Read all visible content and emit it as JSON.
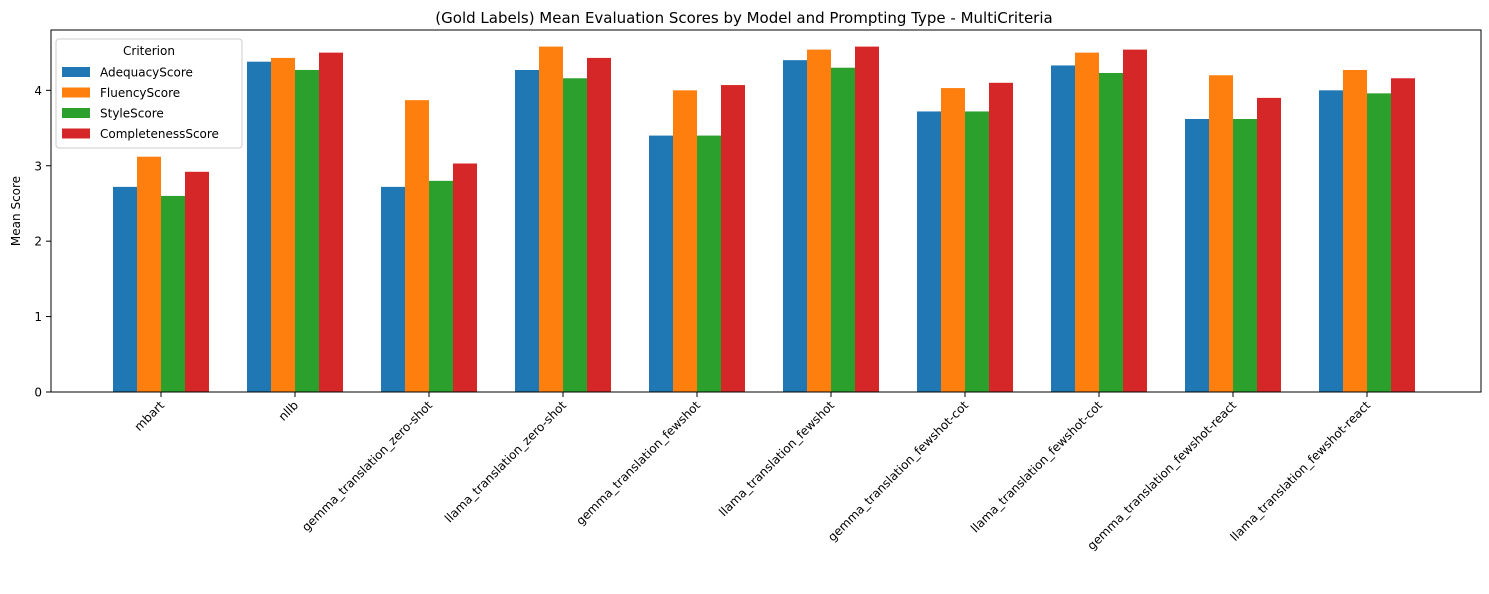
{
  "chart_data": {
    "type": "bar",
    "title": "(Gold Labels) Mean Evaluation Scores by Model and Prompting Type - MultiCriteria",
    "xlabel": "",
    "ylabel": "Mean Score",
    "ylim": [
      0,
      4.8
    ],
    "yticks": [
      0,
      1,
      2,
      3,
      4
    ],
    "grid": false,
    "legend": {
      "title": "Criterion",
      "placement": "top-left"
    },
    "categories": [
      "mbart",
      "nllb",
      "gemma_translation_zero-shot",
      "llama_translation_zero-shot",
      "gemma_translation_fewshot",
      "llama_translation_fewshot",
      "gemma_translation_fewshot-cot",
      "llama_translation_fewshot-cot",
      "gemma_translation_fewshot-react",
      "llama_translation_fewshot-react"
    ],
    "series": [
      {
        "name": "AdequacyScore",
        "color": "#1f77b4",
        "values": [
          2.72,
          4.38,
          2.72,
          4.27,
          3.4,
          4.4,
          3.72,
          4.33,
          3.62,
          4.0
        ]
      },
      {
        "name": "FluencyScore",
        "color": "#ff7f0e",
        "values": [
          3.12,
          4.43,
          3.87,
          4.58,
          4.0,
          4.54,
          4.03,
          4.5,
          4.2,
          4.27
        ]
      },
      {
        "name": "StyleScore",
        "color": "#2ca02c",
        "values": [
          2.6,
          4.27,
          2.8,
          4.16,
          3.4,
          4.3,
          3.72,
          4.23,
          3.62,
          3.96
        ]
      },
      {
        "name": "CompletenessScore",
        "color": "#d62728",
        "values": [
          2.92,
          4.5,
          3.03,
          4.43,
          4.07,
          4.58,
          4.1,
          4.54,
          3.9,
          4.16
        ]
      }
    ]
  }
}
